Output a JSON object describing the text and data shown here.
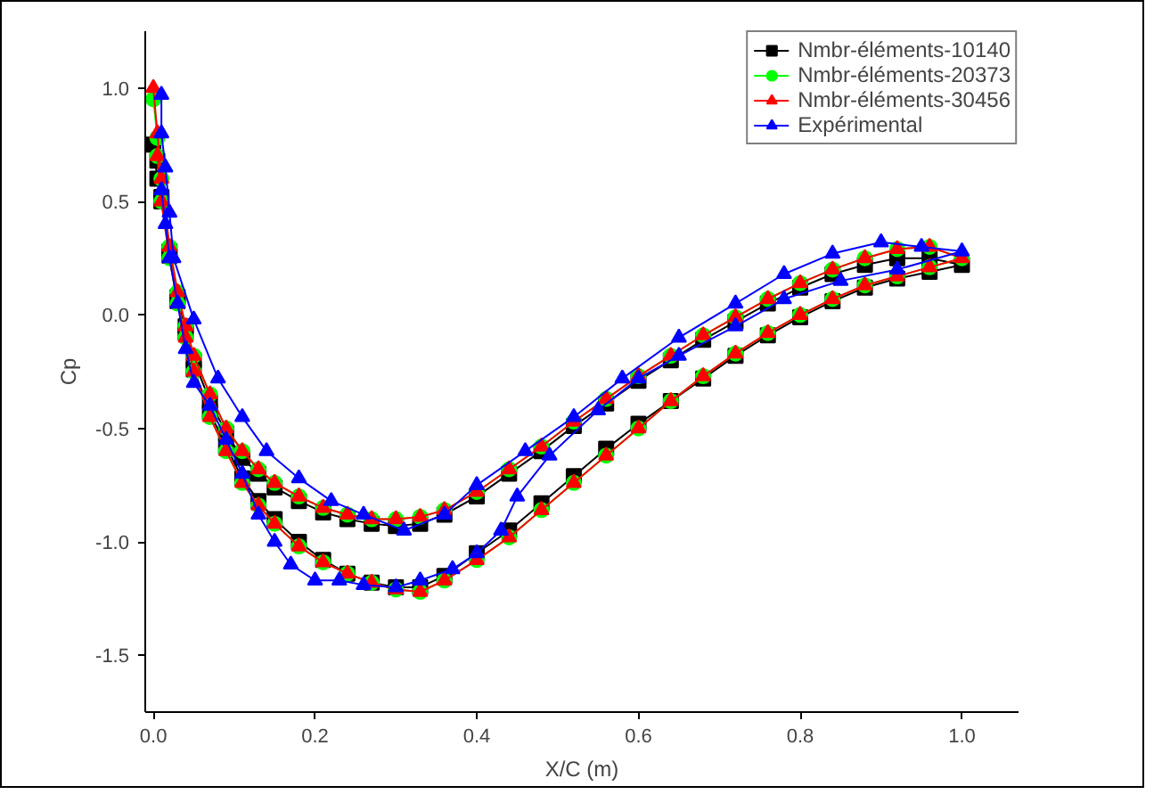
{
  "chart_data": {
    "type": "line",
    "xlabel": "X/C (m)",
    "ylabel": "Cp",
    "xlim": [
      -0.01,
      1.07
    ],
    "ylim": [
      -1.75,
      1.25
    ],
    "xticks": [
      {
        "value": 0,
        "label": "0.0"
      },
      0.2,
      0.4,
      0.6,
      0.8,
      {
        "value": 1,
        "label": "1.0"
      }
    ],
    "yticks": [
      {
        "value": 1,
        "label": "1.0"
      },
      0.5,
      {
        "value": 0,
        "label": "0.0"
      },
      {
        "value": -0.5,
        "label": "-0.5"
      },
      {
        "value": -1,
        "label": "-1.0"
      },
      {
        "value": -1.5,
        "label": "-1.5"
      }
    ],
    "grid": false,
    "legend": "top right",
    "line_style": "solid",
    "series": [
      {
        "name": "Nmbr-éléments-10140",
        "color": "#000000",
        "marker": "square",
        "x": [
          0.0,
          0.005,
          0.01,
          0.02,
          0.03,
          0.04,
          0.05,
          0.07,
          0.09,
          0.11,
          0.13,
          0.15,
          0.18,
          0.21,
          0.24,
          0.27,
          0.3,
          0.33,
          0.36,
          0.4,
          0.44,
          0.48,
          0.52,
          0.56,
          0.6,
          0.64,
          0.68,
          0.72,
          0.76,
          0.8,
          0.84,
          0.88,
          0.92,
          0.96,
          1.0,
          0.96,
          0.92,
          0.88,
          0.84,
          0.8,
          0.76,
          0.72,
          0.68,
          0.64,
          0.6,
          0.56,
          0.52,
          0.48,
          0.44,
          0.4,
          0.36,
          0.33,
          0.3,
          0.27,
          0.24,
          0.21,
          0.18,
          0.15,
          0.13,
          0.11,
          0.09,
          0.07,
          0.05,
          0.04,
          0.03,
          0.02,
          0.01,
          0.005
        ],
        "values": [
          0.75,
          0.6,
          0.5,
          0.28,
          0.08,
          -0.05,
          -0.2,
          -0.38,
          -0.52,
          -0.63,
          -0.7,
          -0.76,
          -0.82,
          -0.87,
          -0.9,
          -0.92,
          -0.93,
          -0.92,
          -0.88,
          -0.8,
          -0.7,
          -0.6,
          -0.49,
          -0.39,
          -0.29,
          -0.2,
          -0.11,
          -0.03,
          0.05,
          0.12,
          0.18,
          0.22,
          0.25,
          0.25,
          0.22,
          0.19,
          0.16,
          0.12,
          0.06,
          -0.01,
          -0.09,
          -0.18,
          -0.28,
          -0.38,
          -0.48,
          -0.59,
          -0.71,
          -0.83,
          -0.95,
          -1.05,
          -1.15,
          -1.2,
          -1.2,
          -1.18,
          -1.14,
          -1.08,
          -1.0,
          -0.9,
          -0.82,
          -0.72,
          -0.58,
          -0.43,
          -0.24,
          -0.08,
          0.06,
          0.26,
          0.52,
          0.68
        ]
      },
      {
        "name": "Nmbr-éléments-20373",
        "color": "#00ff00",
        "marker": "circle",
        "x": [
          0.0,
          0.005,
          0.01,
          0.02,
          0.03,
          0.04,
          0.05,
          0.07,
          0.09,
          0.11,
          0.13,
          0.15,
          0.18,
          0.21,
          0.24,
          0.27,
          0.3,
          0.33,
          0.36,
          0.4,
          0.44,
          0.48,
          0.52,
          0.56,
          0.6,
          0.64,
          0.68,
          0.72,
          0.76,
          0.8,
          0.84,
          0.88,
          0.92,
          0.96,
          1.0,
          0.96,
          0.92,
          0.88,
          0.84,
          0.8,
          0.76,
          0.72,
          0.68,
          0.64,
          0.6,
          0.56,
          0.52,
          0.48,
          0.44,
          0.4,
          0.36,
          0.33,
          0.3,
          0.27,
          0.24,
          0.21,
          0.18,
          0.15,
          0.13,
          0.11,
          0.09,
          0.07,
          0.05,
          0.04,
          0.03,
          0.02,
          0.01,
          0.005
        ],
        "values": [
          0.95,
          0.78,
          0.6,
          0.3,
          0.1,
          -0.05,
          -0.18,
          -0.35,
          -0.5,
          -0.6,
          -0.68,
          -0.74,
          -0.8,
          -0.85,
          -0.88,
          -0.9,
          -0.9,
          -0.89,
          -0.86,
          -0.78,
          -0.68,
          -0.58,
          -0.47,
          -0.37,
          -0.27,
          -0.18,
          -0.09,
          -0.01,
          0.07,
          0.14,
          0.2,
          0.25,
          0.29,
          0.3,
          0.25,
          0.21,
          0.17,
          0.13,
          0.07,
          0.0,
          -0.08,
          -0.17,
          -0.27,
          -0.38,
          -0.5,
          -0.62,
          -0.74,
          -0.86,
          -0.98,
          -1.08,
          -1.17,
          -1.22,
          -1.21,
          -1.18,
          -1.14,
          -1.09,
          -1.02,
          -0.92,
          -0.84,
          -0.74,
          -0.6,
          -0.45,
          -0.25,
          -0.1,
          0.05,
          0.25,
          0.5,
          0.7
        ]
      },
      {
        "name": "Nmbr-éléments-30456",
        "color": "#ff0000",
        "marker": "triangle",
        "x": [
          0.0,
          0.005,
          0.01,
          0.02,
          0.03,
          0.04,
          0.05,
          0.07,
          0.09,
          0.11,
          0.13,
          0.15,
          0.18,
          0.21,
          0.24,
          0.27,
          0.3,
          0.33,
          0.36,
          0.4,
          0.44,
          0.48,
          0.52,
          0.56,
          0.6,
          0.64,
          0.68,
          0.72,
          0.76,
          0.8,
          0.84,
          0.88,
          0.92,
          0.96,
          1.0,
          0.96,
          0.92,
          0.88,
          0.84,
          0.8,
          0.76,
          0.72,
          0.68,
          0.64,
          0.6,
          0.56,
          0.52,
          0.48,
          0.44,
          0.4,
          0.36,
          0.33,
          0.3,
          0.27,
          0.24,
          0.21,
          0.18,
          0.15,
          0.13,
          0.11,
          0.09,
          0.07,
          0.05,
          0.04,
          0.03,
          0.02,
          0.01,
          0.005
        ],
        "values": [
          1.0,
          0.8,
          0.6,
          0.3,
          0.1,
          -0.05,
          -0.18,
          -0.35,
          -0.5,
          -0.6,
          -0.68,
          -0.74,
          -0.8,
          -0.85,
          -0.88,
          -0.9,
          -0.9,
          -0.89,
          -0.86,
          -0.78,
          -0.68,
          -0.58,
          -0.47,
          -0.37,
          -0.27,
          -0.18,
          -0.09,
          -0.01,
          0.07,
          0.14,
          0.2,
          0.25,
          0.29,
          0.3,
          0.25,
          0.21,
          0.17,
          0.13,
          0.07,
          0.0,
          -0.08,
          -0.17,
          -0.27,
          -0.38,
          -0.5,
          -0.62,
          -0.74,
          -0.86,
          -0.98,
          -1.08,
          -1.17,
          -1.22,
          -1.21,
          -1.18,
          -1.14,
          -1.09,
          -1.02,
          -0.92,
          -0.84,
          -0.74,
          -0.6,
          -0.45,
          -0.25,
          -0.1,
          0.05,
          0.25,
          0.5,
          0.7
        ]
      },
      {
        "name": "Expérimental",
        "color": "#0000ff",
        "marker": "triangle",
        "x": [
          0.01,
          0.01,
          0.015,
          0.02,
          0.025,
          0.05,
          0.08,
          0.11,
          0.14,
          0.18,
          0.22,
          0.26,
          0.31,
          0.36,
          0.4,
          0.46,
          0.52,
          0.58,
          0.65,
          0.72,
          0.78,
          0.84,
          0.9,
          0.95,
          1.0,
          0.92,
          0.85,
          0.78,
          0.72,
          0.65,
          0.6,
          0.55,
          0.49,
          0.45,
          0.43,
          0.4,
          0.37,
          0.33,
          0.3,
          0.26,
          0.23,
          0.2,
          0.17,
          0.15,
          0.13,
          0.11,
          0.09,
          0.07,
          0.05,
          0.04,
          0.03,
          0.02,
          0.015,
          0.01
        ],
        "values": [
          0.97,
          0.8,
          0.65,
          0.45,
          0.25,
          -0.02,
          -0.28,
          -0.45,
          -0.6,
          -0.72,
          -0.82,
          -0.88,
          -0.95,
          -0.88,
          -0.75,
          -0.6,
          -0.45,
          -0.28,
          -0.1,
          0.05,
          0.18,
          0.27,
          0.32,
          0.3,
          0.28,
          0.2,
          0.15,
          0.07,
          -0.05,
          -0.18,
          -0.28,
          -0.42,
          -0.62,
          -0.8,
          -0.95,
          -1.05,
          -1.12,
          -1.17,
          -1.2,
          -1.19,
          -1.17,
          -1.17,
          -1.1,
          -1.0,
          -0.88,
          -0.7,
          -0.55,
          -0.4,
          -0.3,
          -0.15,
          0.05,
          0.25,
          0.4,
          0.55
        ]
      }
    ]
  }
}
